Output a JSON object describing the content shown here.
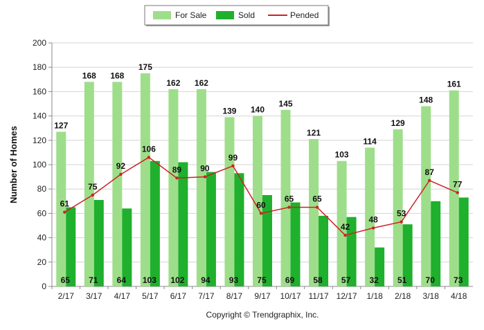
{
  "chart_data": {
    "type": "bar",
    "categories": [
      "2/17",
      "3/17",
      "4/17",
      "5/17",
      "6/17",
      "7/17",
      "8/17",
      "9/17",
      "10/17",
      "11/17",
      "12/17",
      "1/18",
      "2/18",
      "3/18",
      "4/18"
    ],
    "series": [
      {
        "name": "For Sale",
        "type": "bar",
        "color": "#9ede8a",
        "values": [
          127,
          168,
          168,
          175,
          162,
          162,
          139,
          140,
          145,
          121,
          103,
          114,
          129,
          148,
          161
        ]
      },
      {
        "name": "Sold",
        "type": "bar",
        "color": "#1fb02d",
        "values": [
          65,
          71,
          64,
          103,
          102,
          94,
          93,
          75,
          69,
          58,
          57,
          32,
          51,
          70,
          73
        ]
      },
      {
        "name": "Pended",
        "type": "line",
        "color": "#cc2222",
        "values": [
          61,
          75,
          92,
          106,
          89,
          90,
          99,
          60,
          65,
          65,
          42,
          48,
          53,
          87,
          77
        ]
      }
    ],
    "ylabel": "Number of Homes",
    "xlabel": "",
    "ylim": [
      0,
      200
    ],
    "yticks": [
      0,
      20,
      40,
      60,
      80,
      100,
      120,
      140,
      160,
      180,
      200
    ],
    "grid": true,
    "legend_position": "top-center"
  },
  "footer": {
    "copyright": "Copyright © Trendgraphix, Inc."
  }
}
